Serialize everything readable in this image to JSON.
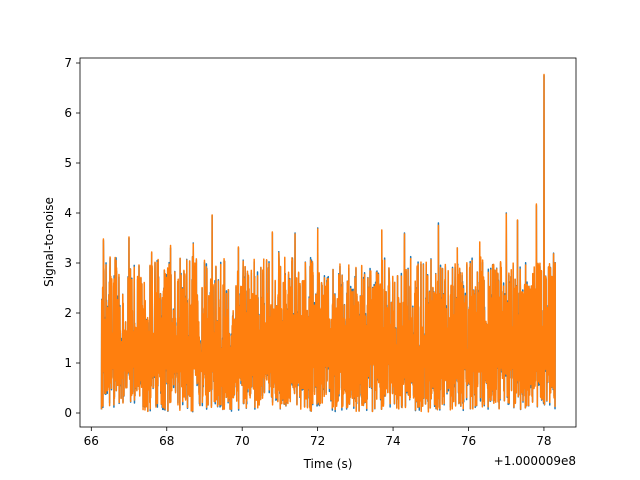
{
  "chart_data": {
    "type": "line",
    "title": "",
    "xlabel": "Time (s)",
    "ylabel": "Signal-to-noise",
    "x_offset_label": "+1.000009e8",
    "xlim": [
      65.7,
      78.85
    ],
    "ylim": [
      -0.28,
      7.1
    ],
    "xticks": [
      66,
      68,
      70,
      72,
      74,
      76,
      78
    ],
    "yticks": [
      0,
      1,
      2,
      3,
      4,
      5,
      6,
      7
    ],
    "grid": false,
    "legend": false,
    "x_range": [
      66.27,
      78.3
    ],
    "series": [
      {
        "color": "#1f77b4",
        "peaks": [
          [
            66.32,
            3.45
          ],
          [
            66.5,
            3.1
          ],
          [
            67.0,
            3.5
          ],
          [
            67.6,
            3.2
          ],
          [
            68.1,
            3.3
          ],
          [
            68.7,
            3.4
          ],
          [
            69.2,
            3.95
          ],
          [
            69.9,
            3.3
          ],
          [
            70.8,
            3.6
          ],
          [
            71.4,
            3.6
          ],
          [
            72.0,
            3.7
          ],
          [
            73.7,
            3.65
          ],
          [
            74.3,
            3.6
          ],
          [
            75.2,
            3.8
          ],
          [
            75.7,
            3.3
          ],
          [
            76.3,
            3.4
          ],
          [
            77.0,
            4.0
          ],
          [
            77.3,
            3.85
          ],
          [
            77.8,
            4.15
          ],
          [
            78.0,
            6.75
          ]
        ]
      },
      {
        "color": "#ff7f0e",
        "peaks": [
          [
            66.32,
            3.48
          ],
          [
            66.5,
            3.12
          ],
          [
            67.0,
            3.52
          ],
          [
            67.6,
            3.22
          ],
          [
            68.1,
            3.35
          ],
          [
            68.7,
            3.38
          ],
          [
            69.2,
            3.96
          ],
          [
            69.9,
            3.32
          ],
          [
            70.8,
            3.62
          ],
          [
            71.4,
            3.58
          ],
          [
            72.0,
            3.68
          ],
          [
            73.7,
            3.66
          ],
          [
            74.3,
            3.58
          ],
          [
            75.2,
            3.75
          ],
          [
            75.7,
            3.3
          ],
          [
            76.3,
            3.42
          ],
          [
            77.0,
            3.98
          ],
          [
            77.3,
            3.86
          ],
          [
            77.8,
            4.18
          ],
          [
            78.0,
            6.77
          ]
        ]
      }
    ]
  }
}
